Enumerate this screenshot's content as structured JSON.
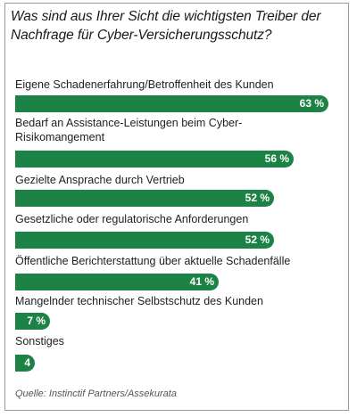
{
  "title": "Was sind aus Ihrer Sicht die wichtigsten Treiber der Nachfrage für Cyber-Versicherungsschutz?",
  "source": "Quelle: Instinctif Partners/Assekurata",
  "colors": {
    "bar": "#1c8245",
    "bar_text": "#ffffff"
  },
  "chart_data": {
    "type": "bar",
    "orientation": "horizontal",
    "title": "Was sind aus Ihrer Sicht die wichtigsten Treiber der Nachfrage für Cyber-Versicherungsschutz?",
    "categories": [
      "Eigene Schadenerfahrung/Betroffenheit des Kunden",
      "Bedarf an Assistance-Leistungen beim Cyber-Risikomangement",
      "Gezielte Ansprache durch Vertrieb",
      "Gesetzliche oder regulatorische Anforderungen",
      "Öffentliche Berichterstattung über aktuelle Schadenfälle",
      "Mangelnder technischer Selbstschutz des Kunden",
      "Sonstiges"
    ],
    "values": [
      63,
      56,
      52,
      52,
      41,
      7,
      4
    ],
    "value_labels": [
      "63 %",
      "56 %",
      "52 %",
      "52 %",
      "41 %",
      "7 %",
      "4 %"
    ],
    "xlim": [
      0,
      63
    ],
    "unit": "%",
    "grid": false,
    "legend": "none"
  }
}
